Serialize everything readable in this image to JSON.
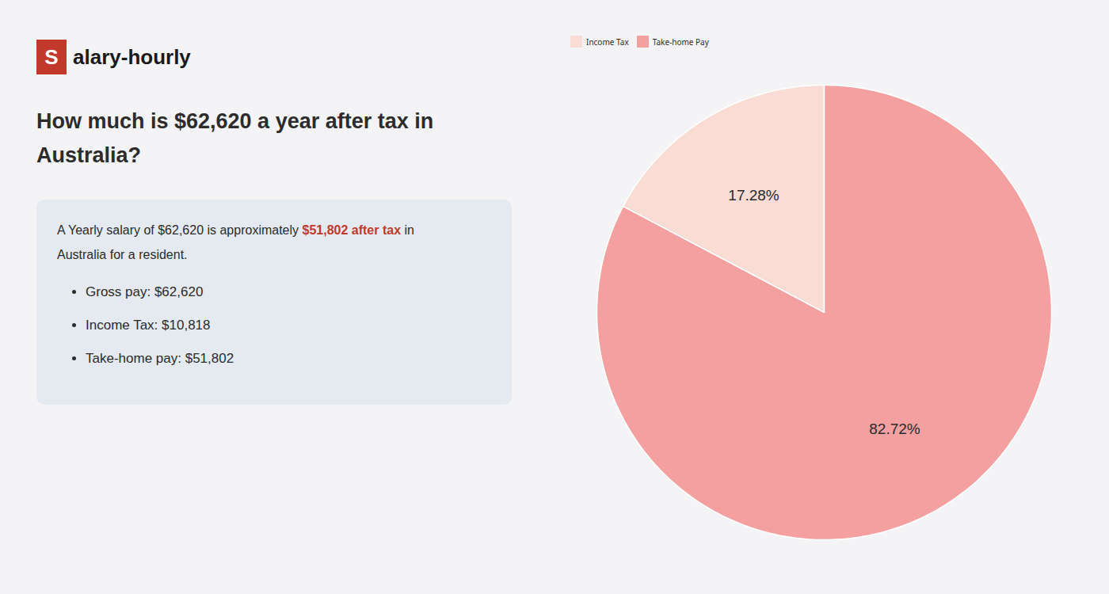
{
  "chart_data": {
    "type": "pie",
    "title": [
      "How much is $62,620 a year after tax in",
      "Australia?"
    ],
    "categories": [
      "Income Tax",
      "Take-home Pay"
    ],
    "values": [
      17.28,
      82.72
    ],
    "value_labels": [
      "17.28%",
      "82.72%"
    ],
    "colors": [
      "#f9ddd5",
      "#f4a0a0"
    ],
    "data_labels": true,
    "legend": "top",
    "annotations": [
      [
        {
          "text": "S",
          "color": "#c0392b"
        },
        {
          "text": "alary-hourly"
        }
      ],
      [
        {
          "text": "A Yearly salary of $62,620 is approximately "
        },
        {
          "text": "$51,802 after tax",
          "color": "#c0392b"
        },
        {
          "text": " in"
        }
      ],
      [
        {
          "text": "Australia for a resident."
        }
      ],
      [
        {
          "text": "Gross pay: $62,620"
        }
      ],
      [
        {
          "text": "Income Tax: $10,818"
        }
      ],
      [
        {
          "text": "Take-home pay: $51,802"
        }
      ]
    ]
  }
}
